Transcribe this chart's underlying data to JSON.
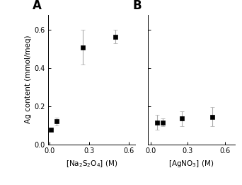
{
  "panel_A": {
    "x": [
      0.01,
      0.05,
      0.25,
      0.5
    ],
    "y": [
      0.075,
      0.12,
      0.51,
      0.565
    ],
    "yerr": [
      0.005,
      0.02,
      0.09,
      0.035
    ],
    "xlabel": "[Na$_2$S$_2$O$_4$] (M)",
    "label": "A"
  },
  "panel_B": {
    "x": [
      0.05,
      0.1,
      0.25,
      0.5
    ],
    "y": [
      0.115,
      0.115,
      0.135,
      0.145
    ],
    "yerr": [
      0.04,
      0.02,
      0.04,
      0.05
    ],
    "xlabel": "[AgNO$_3$] (M)",
    "label": "B"
  },
  "ylabel": "Ag content (mmol/meq)",
  "ylim": [
    0.0,
    0.68
  ],
  "xlim_A": [
    -0.01,
    0.65
  ],
  "xlim_B": [
    -0.02,
    0.68
  ],
  "yticks": [
    0.0,
    0.2,
    0.4,
    0.6
  ],
  "xticks_A": [
    0.0,
    0.3,
    0.6
  ],
  "xticks_B": [
    0.0,
    0.3,
    0.6
  ],
  "marker": "s",
  "markersize": 4,
  "marker_color": "black",
  "ecolor": "#aaaaaa",
  "capsize": 2,
  "elinewidth": 0.8,
  "linewidth": 0
}
